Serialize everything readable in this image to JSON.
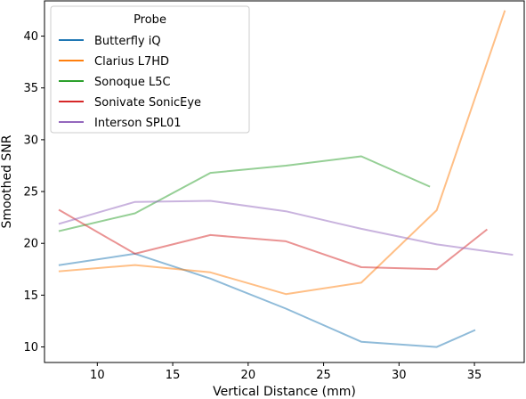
{
  "chart_data": {
    "type": "line",
    "xlabel": "Vertical Distance (mm)",
    "ylabel": "Smoothed SNR",
    "xlim": [
      6.5,
      38.3
    ],
    "ylim": [
      8.5,
      43.4
    ],
    "xticks": [
      10,
      15,
      20,
      25,
      30,
      35
    ],
    "yticks": [
      10,
      15,
      20,
      25,
      30,
      35,
      40
    ],
    "grid": false,
    "legend": {
      "title": "Probe",
      "position": "top-left"
    },
    "series": [
      {
        "name": "Butterfly iQ",
        "color": "#1f77b4",
        "x": [
          7.5,
          12.5,
          17.5,
          22.5,
          27.5,
          32.5,
          35.0
        ],
        "y": [
          17.9,
          19.0,
          16.6,
          13.7,
          10.5,
          10.0,
          11.6
        ]
      },
      {
        "name": "Clarius L7HD",
        "color": "#ff7f0e",
        "x": [
          7.5,
          12.5,
          17.5,
          22.5,
          27.5,
          32.5,
          37.0
        ],
        "y": [
          17.3,
          17.9,
          17.2,
          15.1,
          16.2,
          23.2,
          42.4
        ]
      },
      {
        "name": "Sonoque L5C",
        "color": "#2ca02c",
        "x": [
          7.5,
          12.5,
          17.5,
          22.5,
          27.5,
          32.0
        ],
        "y": [
          21.2,
          22.9,
          26.8,
          27.5,
          28.4,
          25.5
        ]
      },
      {
        "name": "Sonivate SonicEye",
        "color": "#d62728",
        "x": [
          7.5,
          12.5,
          17.5,
          22.5,
          27.5,
          32.5,
          35.8
        ],
        "y": [
          23.2,
          19.0,
          20.8,
          20.2,
          17.7,
          17.5,
          21.3
        ]
      },
      {
        "name": "Interson SPL01",
        "color": "#9467bd",
        "x": [
          7.5,
          12.5,
          17.5,
          22.5,
          27.5,
          32.5,
          37.5
        ],
        "y": [
          21.9,
          24.0,
          24.1,
          23.1,
          21.4,
          19.9,
          18.9
        ]
      }
    ]
  }
}
